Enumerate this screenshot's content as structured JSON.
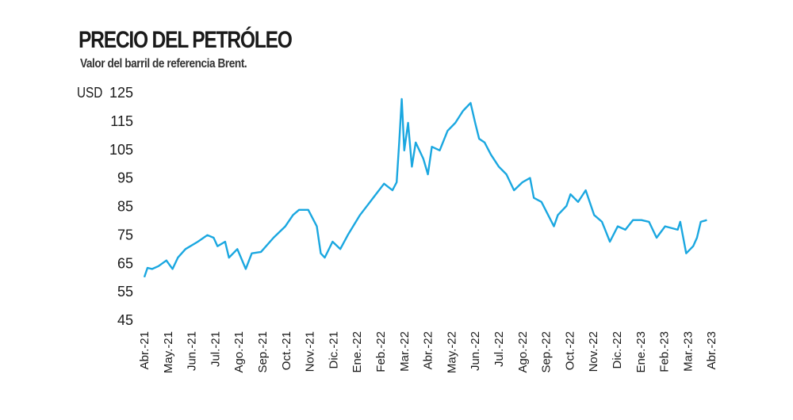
{
  "chart_data": {
    "type": "line",
    "title": "PRECIO DEL PETRÓLEO",
    "subtitle": "Valor del barril de referencia Brent.",
    "ylabel": "USD",
    "ylim": [
      45,
      125
    ],
    "yticks": [
      125,
      115,
      105,
      95,
      85,
      75,
      65,
      55,
      45
    ],
    "xticks": [
      "Abr.-21",
      "May.-21",
      "Jun.-21",
      "Jul.-21",
      "Ago.-21",
      "Sep.-21",
      "Oct.-21",
      "Nov.-21",
      "Dic.-21",
      "Ene.-22",
      "Feb.-22",
      "Mar.-22",
      "Abr.-22",
      "May.-22",
      "Jun.-22",
      "Jul.-22",
      "Ago.-22",
      "Sep.-22",
      "Oct.-22",
      "Nov.-22",
      "Dic.-22",
      "Ene.-23",
      "Feb.-23",
      "Mar.-23",
      "Abr.-23"
    ],
    "xlim": [
      "2021-04-01",
      "2023-04-01"
    ],
    "grid": false,
    "color": "#1aa7e0",
    "series": [
      {
        "points": [
          [
            "2021-04-01",
            60.1
          ],
          [
            "2021-04-05",
            63.4
          ],
          [
            "2021-04-11",
            63
          ],
          [
            "2021-04-19",
            64
          ],
          [
            "2021-04-29",
            66
          ],
          [
            "2021-05-07",
            63
          ],
          [
            "2021-05-14",
            67
          ],
          [
            "2021-05-24",
            70
          ],
          [
            "2021-06-09",
            72.6
          ],
          [
            "2021-06-21",
            74.9
          ],
          [
            "2021-06-29",
            74
          ],
          [
            "2021-07-04",
            71
          ],
          [
            "2021-07-14",
            72.6
          ],
          [
            "2021-07-19",
            67
          ],
          [
            "2021-07-30",
            70
          ],
          [
            "2021-08-10",
            63
          ],
          [
            "2021-08-18",
            68.5
          ],
          [
            "2021-08-30",
            69
          ],
          [
            "2021-09-15",
            74
          ],
          [
            "2021-09-30",
            78
          ],
          [
            "2021-10-10",
            82
          ],
          [
            "2021-10-18",
            83.8
          ],
          [
            "2021-10-30",
            83.8
          ],
          [
            "2021-11-10",
            78
          ],
          [
            "2021-11-15",
            68.5
          ],
          [
            "2021-11-20",
            67
          ],
          [
            "2021-11-30",
            72.6
          ],
          [
            "2021-12-10",
            70
          ],
          [
            "2021-12-20",
            75
          ],
          [
            "2022-01-05",
            82
          ],
          [
            "2022-01-15",
            85.5
          ],
          [
            "2022-01-25",
            89
          ],
          [
            "2022-02-05",
            93
          ],
          [
            "2022-02-15",
            90.7
          ],
          [
            "2022-02-20",
            93.5
          ],
          [
            "2022-02-23",
            107.5
          ],
          [
            "2022-02-26",
            122.8
          ],
          [
            "2022-03-01",
            104.7
          ],
          [
            "2022-03-06",
            114.4
          ],
          [
            "2022-03-11",
            99
          ],
          [
            "2022-03-16",
            107.5
          ],
          [
            "2022-03-26",
            101.8
          ],
          [
            "2022-04-01",
            96.3
          ],
          [
            "2022-04-06",
            106
          ],
          [
            "2022-04-16",
            104.7
          ],
          [
            "2022-04-26",
            111.6
          ],
          [
            "2022-05-06",
            114.4
          ],
          [
            "2022-05-16",
            118.6
          ],
          [
            "2022-05-26",
            121.4
          ],
          [
            "2022-06-01",
            114.4
          ],
          [
            "2022-06-06",
            108.8
          ],
          [
            "2022-06-13",
            107.5
          ],
          [
            "2022-06-21",
            103.2
          ],
          [
            "2022-07-01",
            99
          ],
          [
            "2022-07-11",
            96.3
          ],
          [
            "2022-07-21",
            90.7
          ],
          [
            "2022-08-01",
            93.5
          ],
          [
            "2022-08-11",
            95
          ],
          [
            "2022-08-16",
            88
          ],
          [
            "2022-08-26",
            86.6
          ],
          [
            "2022-09-11",
            78
          ],
          [
            "2022-09-16",
            82
          ],
          [
            "2022-09-27",
            85.2
          ],
          [
            "2022-10-02",
            89.3
          ],
          [
            "2022-10-12",
            86.6
          ],
          [
            "2022-10-22",
            90.7
          ],
          [
            "2022-11-02",
            82
          ],
          [
            "2022-11-12",
            79.6
          ],
          [
            "2022-11-22",
            72.6
          ],
          [
            "2022-12-02",
            78
          ],
          [
            "2022-12-12",
            76.8
          ],
          [
            "2022-12-22",
            80.2
          ],
          [
            "2023-01-02",
            80.2
          ],
          [
            "2023-01-12",
            79.6
          ],
          [
            "2023-01-22",
            74
          ],
          [
            "2023-02-02",
            78
          ],
          [
            "2023-02-17",
            76.8
          ],
          [
            "2023-02-20",
            79.6
          ],
          [
            "2023-02-27",
            68.5
          ],
          [
            "2023-03-08",
            71
          ],
          [
            "2023-03-13",
            74
          ],
          [
            "2023-03-18",
            79.6
          ],
          [
            "2023-03-26",
            80.2
          ]
        ]
      }
    ]
  }
}
